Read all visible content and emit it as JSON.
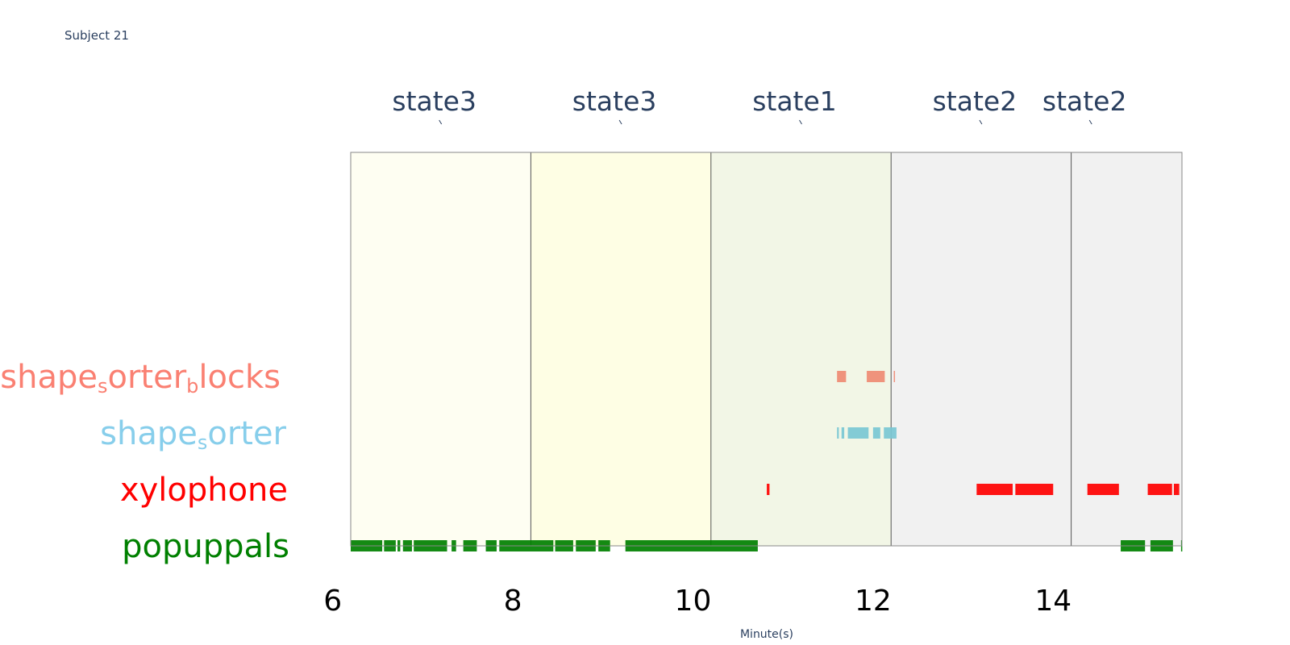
{
  "chart_data": {
    "type": "timeline",
    "title": "Subject 21",
    "xlabel": "Minute(s)",
    "xlim": [
      6.2,
      15.43
    ],
    "x_ticks": [
      6,
      8,
      10,
      12,
      14
    ],
    "states": [
      {
        "label": "state3",
        "start": 6.2,
        "end": 8.2,
        "color": "#fefef2"
      },
      {
        "label": "state3",
        "start": 8.2,
        "end": 10.2,
        "color": "#fefee4"
      },
      {
        "label": "state1",
        "start": 10.2,
        "end": 12.2,
        "color": "#f2f6e6"
      },
      {
        "label": "state2",
        "start": 12.2,
        "end": 14.2,
        "color": "#f1f1f1"
      },
      {
        "label": "state2",
        "start": 14.2,
        "end": 15.43,
        "color": "#f1f1f1"
      }
    ],
    "series": [
      {
        "name": "popuppals",
        "color": "#008000",
        "label_parts": [
          [
            "popuppals",
            false
          ]
        ],
        "segments": [
          [
            6.2,
            6.55
          ],
          [
            6.57,
            6.7
          ],
          [
            6.72,
            6.75
          ],
          [
            6.78,
            6.88
          ],
          [
            6.9,
            7.27
          ],
          [
            7.32,
            7.37
          ],
          [
            7.45,
            7.6
          ],
          [
            7.7,
            7.82
          ],
          [
            7.85,
            8.45
          ],
          [
            8.47,
            8.67
          ],
          [
            8.7,
            8.92
          ],
          [
            8.95,
            9.08
          ],
          [
            9.25,
            10.72
          ],
          [
            14.75,
            15.02
          ],
          [
            15.08,
            15.33
          ],
          [
            15.42,
            15.43
          ]
        ]
      },
      {
        "name": "xylophone",
        "color": "#ff0000",
        "label_parts": [
          [
            "xylophone",
            false
          ]
        ],
        "segments": [
          [
            10.82,
            10.85
          ],
          [
            13.15,
            13.55
          ],
          [
            13.58,
            14.0
          ],
          [
            14.38,
            14.73
          ],
          [
            15.05,
            15.32
          ],
          [
            15.34,
            15.4
          ]
        ]
      },
      {
        "name": "shape_sorter",
        "color": "#7ac7d4",
        "label_parts": [
          [
            "shape",
            false
          ],
          [
            "s",
            true
          ],
          [
            "orter",
            false
          ]
        ],
        "segments": [
          [
            11.6,
            11.62
          ],
          [
            11.65,
            11.68
          ],
          [
            11.72,
            11.95
          ],
          [
            12.0,
            12.08
          ],
          [
            12.12,
            12.26
          ]
        ]
      },
      {
        "name": "shape_sorter_blocks",
        "color": "#ef8a73",
        "label_parts": [
          [
            "shape",
            false
          ],
          [
            "s",
            true
          ],
          [
            "orter",
            false
          ],
          [
            "b",
            true
          ],
          [
            "locks",
            false
          ]
        ],
        "segments": [
          [
            11.6,
            11.7
          ],
          [
            11.93,
            12.13
          ],
          [
            12.23,
            12.24
          ]
        ]
      }
    ],
    "label_colors": {
      "popuppals": "#008000",
      "xylophone": "#ff0000",
      "shape_sorter": "#87ceeb",
      "shape_sorter_blocks": "#fa8072"
    }
  }
}
